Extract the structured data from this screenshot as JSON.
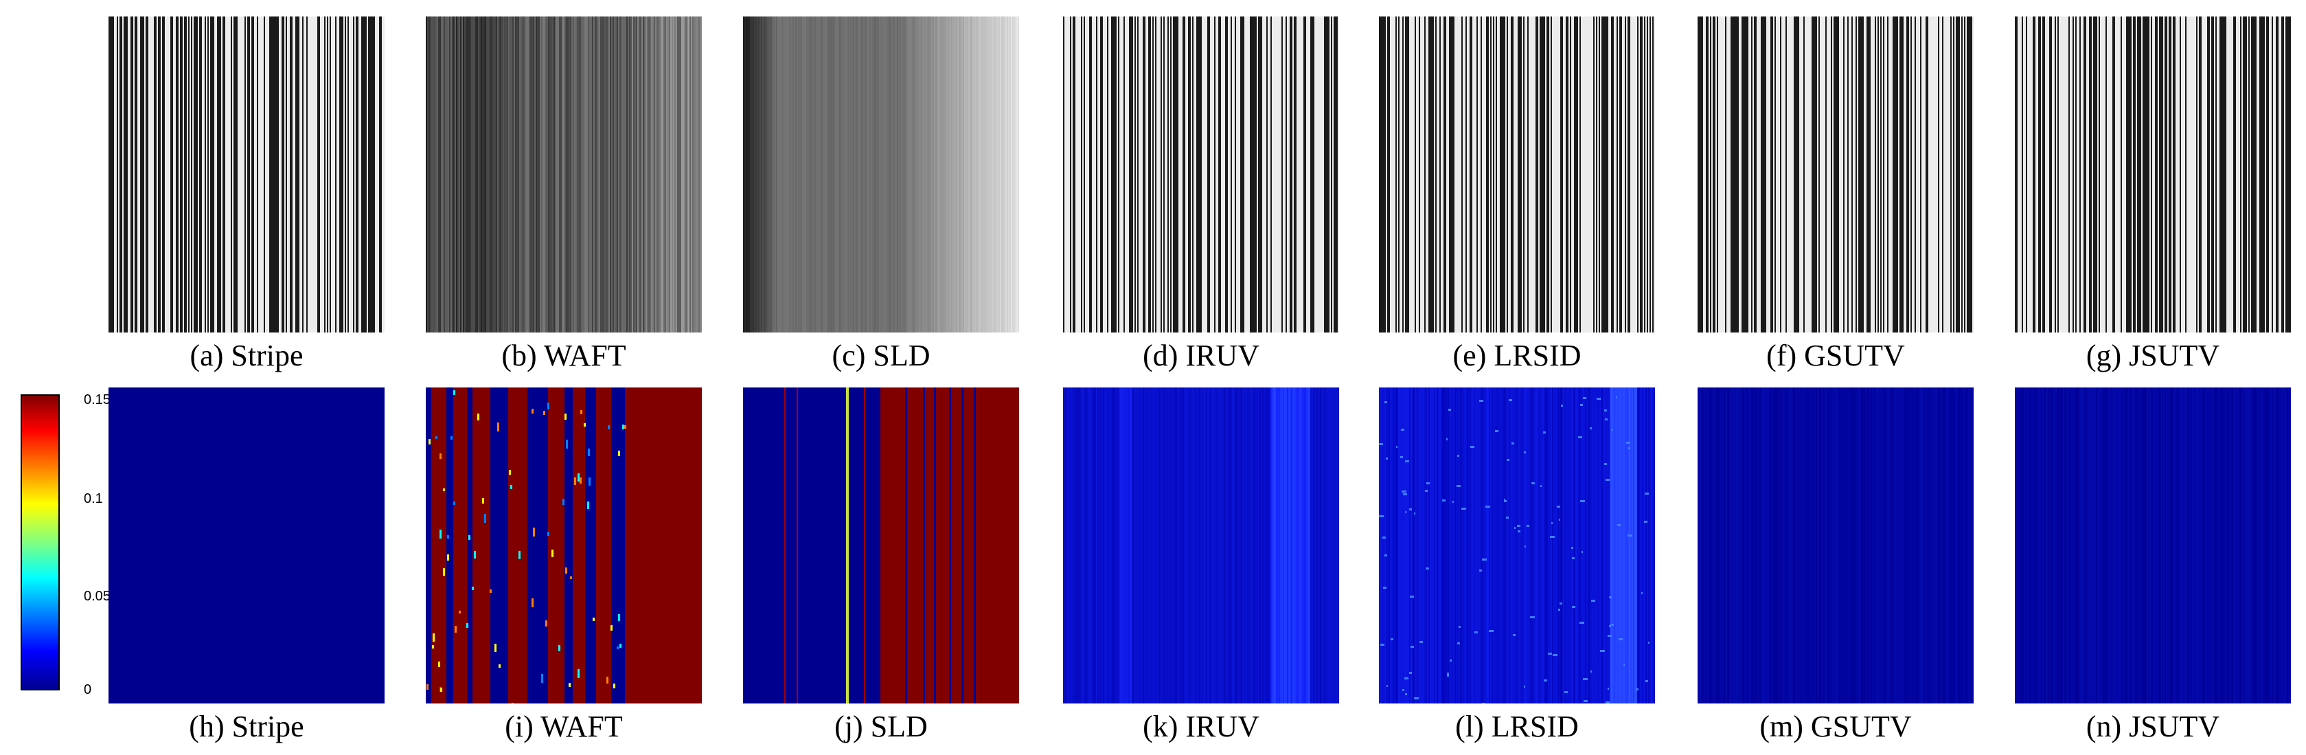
{
  "top_row": [
    {
      "caption": "(a) Stripe",
      "style": "stripe"
    },
    {
      "caption": "(b) WAFT",
      "style": "waft"
    },
    {
      "caption": "(c) SLD",
      "style": "sld"
    },
    {
      "caption": "(d) IRUV",
      "style": "stripe"
    },
    {
      "caption": "(e) LRSID",
      "style": "stripe"
    },
    {
      "caption": "(f) GSUTV",
      "style": "stripe"
    },
    {
      "caption": "(g) JSUTV",
      "style": "stripe"
    }
  ],
  "bottom_row": [
    {
      "caption": "(h) Stripe",
      "style": "flat"
    },
    {
      "caption": "(i) WAFT",
      "style": "waft_err"
    },
    {
      "caption": "(j) SLD",
      "style": "sld_err"
    },
    {
      "caption": "(k) IRUV",
      "style": "iruv_err"
    },
    {
      "caption": "(l) LRSID",
      "style": "lrsid_err"
    },
    {
      "caption": "(m) GSUTV",
      "style": "faint_err"
    },
    {
      "caption": "(n) JSUTV",
      "style": "faint_err"
    }
  ],
  "colorbar": {
    "ticks": [
      "0.15",
      "0.1",
      "0.05",
      "0"
    ],
    "colors": [
      "#800000",
      "#ff0000",
      "#ff8000",
      "#ffff00",
      "#80ff80",
      "#00ffff",
      "#0080ff",
      "#0000ff",
      "#00008f"
    ]
  }
}
